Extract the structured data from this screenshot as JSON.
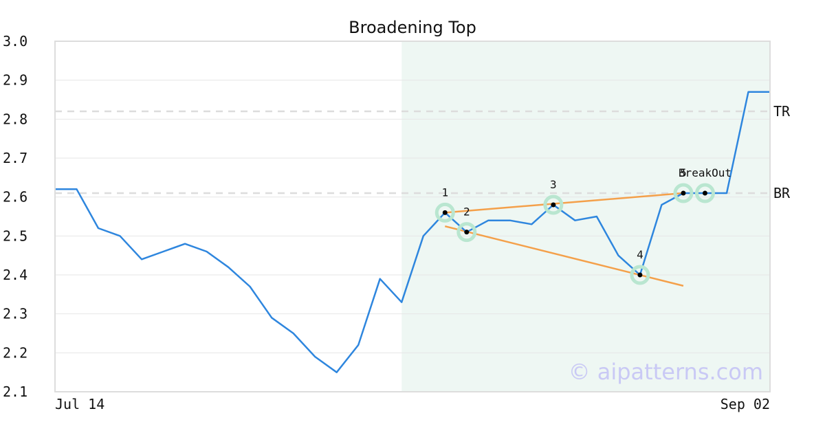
{
  "chart_data": {
    "type": "line",
    "title": "Broadening Top",
    "xlabel": "",
    "ylabel": "",
    "ylim": [
      2.1,
      3.0
    ],
    "yticks": [
      "2.1",
      "2.2",
      "2.3",
      "2.4",
      "2.5",
      "2.6",
      "2.7",
      "2.8",
      "2.9",
      "3.0"
    ],
    "x_tick_labels": [
      "Jul 14",
      "Sep 02"
    ],
    "grid": "horizontal",
    "series": [
      {
        "color": "#2e86de",
        "values": [
          2.62,
          2.62,
          2.52,
          2.5,
          2.44,
          2.46,
          2.48,
          2.46,
          2.42,
          2.37,
          2.29,
          2.25,
          2.19,
          2.15,
          2.22,
          2.39,
          2.33,
          2.5,
          2.56,
          2.51,
          2.54,
          2.54,
          2.53,
          2.58,
          2.54,
          2.55,
          2.45,
          2.4,
          2.58,
          2.61,
          2.61,
          2.61,
          2.87,
          2.87
        ]
      }
    ],
    "pattern_region": {
      "start_index": 16,
      "end_index": 33,
      "color": "#eef7f3"
    },
    "reference_lines": [
      {
        "label": "TR",
        "value": 2.82
      },
      {
        "label": "BR",
        "value": 2.61
      }
    ],
    "trend_lines": [
      {
        "from": [
          18,
          2.56
        ],
        "to": [
          29,
          2.61
        ],
        "color": "#f4a04a"
      },
      {
        "from": [
          18,
          2.525
        ],
        "to": [
          29,
          2.372
        ],
        "color": "#f4a04a"
      }
    ],
    "pattern_points": [
      {
        "label": "1",
        "index": 18,
        "value": 2.56
      },
      {
        "label": "2",
        "index": 19,
        "value": 2.51
      },
      {
        "label": "3",
        "index": 23,
        "value": 2.58
      },
      {
        "label": "4",
        "index": 27,
        "value": 2.4
      },
      {
        "label": "5",
        "index": 29,
        "value": 2.61
      },
      {
        "label": "BreakOut",
        "index": 30,
        "value": 2.61
      }
    ],
    "watermark": "© aipatterns.com"
  }
}
